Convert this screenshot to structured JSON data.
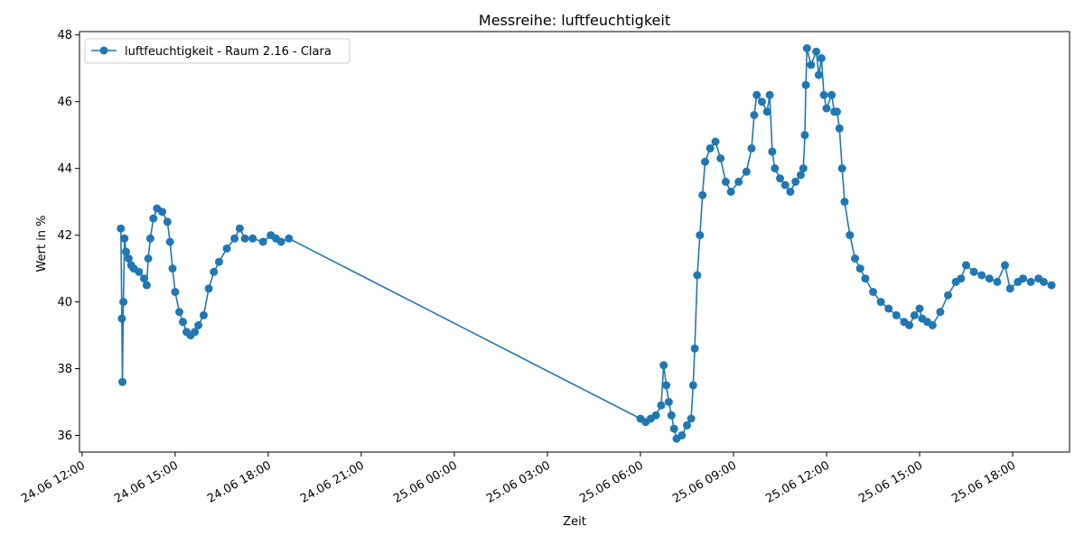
{
  "chart_data": {
    "type": "line",
    "title": "Messreihe: luftfeuchtigkeit",
    "xlabel": "Zeit",
    "ylabel": "Wert in %",
    "x_axis_kind": "time",
    "xlim": [
      "2024-06-24T11:55",
      "2024-06-25T19:50"
    ],
    "ylim": [
      35.5,
      48.1
    ],
    "x_ticks": [
      {
        "t": "2024-06-24T12:00",
        "label": "24.06 12:00"
      },
      {
        "t": "2024-06-24T15:00",
        "label": "24.06 15:00"
      },
      {
        "t": "2024-06-24T18:00",
        "label": "24.06 18:00"
      },
      {
        "t": "2024-06-24T21:00",
        "label": "24.06 21:00"
      },
      {
        "t": "2024-06-25T00:00",
        "label": "25.06 00:00"
      },
      {
        "t": "2024-06-25T03:00",
        "label": "25.06 03:00"
      },
      {
        "t": "2024-06-25T06:00",
        "label": "25.06 06:00"
      },
      {
        "t": "2024-06-25T09:00",
        "label": "25.06 09:00"
      },
      {
        "t": "2024-06-25T12:00",
        "label": "25.06 12:00"
      },
      {
        "t": "2024-06-25T15:00",
        "label": "25.06 15:00"
      },
      {
        "t": "2024-06-25T18:00",
        "label": "25.06 18:00"
      }
    ],
    "y_ticks": [
      {
        "v": 36,
        "label": "36"
      },
      {
        "v": 38,
        "label": "38"
      },
      {
        "v": 40,
        "label": "40"
      },
      {
        "v": 42,
        "label": "42"
      },
      {
        "v": 44,
        "label": "44"
      },
      {
        "v": 46,
        "label": "46"
      },
      {
        "v": 48,
        "label": "48"
      }
    ],
    "grid": false,
    "legend_position": "top-left",
    "series": [
      {
        "name": "luftfeuchtigkeit - Raum 2.16 - Clara",
        "color": "#1f77b4",
        "marker": "circle",
        "points": [
          [
            "2024-06-24T13:15",
            42.2
          ],
          [
            "2024-06-24T13:17",
            39.5
          ],
          [
            "2024-06-24T13:18",
            37.6
          ],
          [
            "2024-06-24T13:20",
            40.0
          ],
          [
            "2024-06-24T13:22",
            41.9
          ],
          [
            "2024-06-24T13:25",
            41.5
          ],
          [
            "2024-06-24T13:30",
            41.3
          ],
          [
            "2024-06-24T13:35",
            41.1
          ],
          [
            "2024-06-24T13:40",
            41.0
          ],
          [
            "2024-06-24T13:50",
            40.9
          ],
          [
            "2024-06-24T14:00",
            40.7
          ],
          [
            "2024-06-24T14:05",
            40.5
          ],
          [
            "2024-06-24T14:08",
            41.3
          ],
          [
            "2024-06-24T14:12",
            41.9
          ],
          [
            "2024-06-24T14:18",
            42.5
          ],
          [
            "2024-06-24T14:25",
            42.8
          ],
          [
            "2024-06-24T14:35",
            42.7
          ],
          [
            "2024-06-24T14:45",
            42.4
          ],
          [
            "2024-06-24T14:50",
            41.8
          ],
          [
            "2024-06-24T14:55",
            41.0
          ],
          [
            "2024-06-24T15:00",
            40.3
          ],
          [
            "2024-06-24T15:08",
            39.7
          ],
          [
            "2024-06-24T15:15",
            39.4
          ],
          [
            "2024-06-24T15:22",
            39.1
          ],
          [
            "2024-06-24T15:30",
            39.0
          ],
          [
            "2024-06-24T15:38",
            39.1
          ],
          [
            "2024-06-24T15:45",
            39.3
          ],
          [
            "2024-06-24T15:55",
            39.6
          ],
          [
            "2024-06-24T16:05",
            40.4
          ],
          [
            "2024-06-24T16:15",
            40.9
          ],
          [
            "2024-06-24T16:25",
            41.2
          ],
          [
            "2024-06-24T16:40",
            41.6
          ],
          [
            "2024-06-24T16:55",
            41.9
          ],
          [
            "2024-06-24T17:05",
            42.2
          ],
          [
            "2024-06-24T17:15",
            41.9
          ],
          [
            "2024-06-24T17:30",
            41.9
          ],
          [
            "2024-06-24T17:50",
            41.8
          ],
          [
            "2024-06-24T18:05",
            42.0
          ],
          [
            "2024-06-24T18:15",
            41.9
          ],
          [
            "2024-06-24T18:25",
            41.8
          ],
          [
            "2024-06-24T18:40",
            41.9
          ],
          [
            "2024-06-25T06:00",
            36.5
          ],
          [
            "2024-06-25T06:10",
            36.4
          ],
          [
            "2024-06-25T06:20",
            36.5
          ],
          [
            "2024-06-25T06:30",
            36.6
          ],
          [
            "2024-06-25T06:40",
            36.9
          ],
          [
            "2024-06-25T06:45",
            38.1
          ],
          [
            "2024-06-25T06:50",
            37.5
          ],
          [
            "2024-06-25T06:55",
            37.0
          ],
          [
            "2024-06-25T07:00",
            36.6
          ],
          [
            "2024-06-25T07:05",
            36.2
          ],
          [
            "2024-06-25T07:10",
            35.9
          ],
          [
            "2024-06-25T07:20",
            36.0
          ],
          [
            "2024-06-25T07:30",
            36.3
          ],
          [
            "2024-06-25T07:38",
            36.5
          ],
          [
            "2024-06-25T07:42",
            37.5
          ],
          [
            "2024-06-25T07:45",
            38.6
          ],
          [
            "2024-06-25T07:50",
            40.8
          ],
          [
            "2024-06-25T07:55",
            42.0
          ],
          [
            "2024-06-25T08:00",
            43.2
          ],
          [
            "2024-06-25T08:05",
            44.2
          ],
          [
            "2024-06-25T08:15",
            44.6
          ],
          [
            "2024-06-25T08:25",
            44.8
          ],
          [
            "2024-06-25T08:35",
            44.3
          ],
          [
            "2024-06-25T08:45",
            43.6
          ],
          [
            "2024-06-25T08:55",
            43.3
          ],
          [
            "2024-06-25T09:10",
            43.6
          ],
          [
            "2024-06-25T09:25",
            43.9
          ],
          [
            "2024-06-25T09:35",
            44.6
          ],
          [
            "2024-06-25T09:40",
            45.6
          ],
          [
            "2024-06-25T09:45",
            46.2
          ],
          [
            "2024-06-25T09:55",
            46.0
          ],
          [
            "2024-06-25T10:05",
            45.7
          ],
          [
            "2024-06-25T10:10",
            46.2
          ],
          [
            "2024-06-25T10:15",
            44.5
          ],
          [
            "2024-06-25T10:20",
            44.0
          ],
          [
            "2024-06-25T10:30",
            43.7
          ],
          [
            "2024-06-25T10:40",
            43.5
          ],
          [
            "2024-06-25T10:50",
            43.3
          ],
          [
            "2024-06-25T11:00",
            43.6
          ],
          [
            "2024-06-25T11:10",
            43.8
          ],
          [
            "2024-06-25T11:15",
            44.0
          ],
          [
            "2024-06-25T11:18",
            45.0
          ],
          [
            "2024-06-25T11:20",
            46.5
          ],
          [
            "2024-06-25T11:22",
            47.6
          ],
          [
            "2024-06-25T11:30",
            47.1
          ],
          [
            "2024-06-25T11:40",
            47.5
          ],
          [
            "2024-06-25T11:45",
            46.8
          ],
          [
            "2024-06-25T11:50",
            47.3
          ],
          [
            "2024-06-25T11:55",
            46.2
          ],
          [
            "2024-06-25T12:00",
            45.8
          ],
          [
            "2024-06-25T12:10",
            46.2
          ],
          [
            "2024-06-25T12:15",
            45.7
          ],
          [
            "2024-06-25T12:20",
            45.7
          ],
          [
            "2024-06-25T12:25",
            45.2
          ],
          [
            "2024-06-25T12:30",
            44.0
          ],
          [
            "2024-06-25T12:35",
            43.0
          ],
          [
            "2024-06-25T12:45",
            42.0
          ],
          [
            "2024-06-25T12:55",
            41.3
          ],
          [
            "2024-06-25T13:05",
            41.0
          ],
          [
            "2024-06-25T13:15",
            40.7
          ],
          [
            "2024-06-25T13:30",
            40.3
          ],
          [
            "2024-06-25T13:45",
            40.0
          ],
          [
            "2024-06-25T14:00",
            39.8
          ],
          [
            "2024-06-25T14:15",
            39.6
          ],
          [
            "2024-06-25T14:30",
            39.4
          ],
          [
            "2024-06-25T14:40",
            39.3
          ],
          [
            "2024-06-25T14:50",
            39.6
          ],
          [
            "2024-06-25T15:00",
            39.8
          ],
          [
            "2024-06-25T15:05",
            39.5
          ],
          [
            "2024-06-25T15:15",
            39.4
          ],
          [
            "2024-06-25T15:25",
            39.3
          ],
          [
            "2024-06-25T15:40",
            39.7
          ],
          [
            "2024-06-25T15:55",
            40.2
          ],
          [
            "2024-06-25T16:10",
            40.6
          ],
          [
            "2024-06-25T16:20",
            40.7
          ],
          [
            "2024-06-25T16:30",
            41.1
          ],
          [
            "2024-06-25T16:45",
            40.9
          ],
          [
            "2024-06-25T17:00",
            40.8
          ],
          [
            "2024-06-25T17:15",
            40.7
          ],
          [
            "2024-06-25T17:30",
            40.6
          ],
          [
            "2024-06-25T17:45",
            41.1
          ],
          [
            "2024-06-25T17:55",
            40.4
          ],
          [
            "2024-06-25T18:10",
            40.6
          ],
          [
            "2024-06-25T18:20",
            40.7
          ],
          [
            "2024-06-25T18:35",
            40.6
          ],
          [
            "2024-06-25T18:50",
            40.7
          ],
          [
            "2024-06-25T19:00",
            40.6
          ],
          [
            "2024-06-25T19:15",
            40.5
          ]
        ]
      }
    ]
  }
}
